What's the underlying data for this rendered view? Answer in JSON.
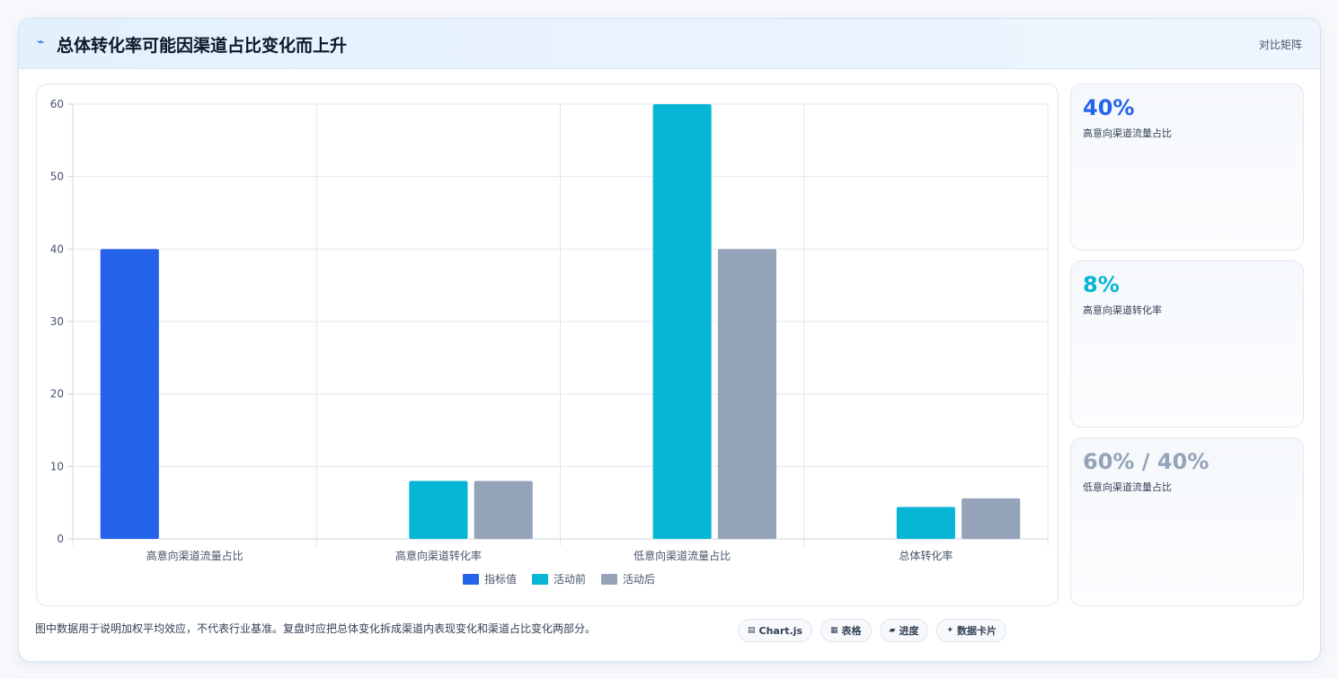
{
  "header": {
    "icon": "chart-line-icon",
    "icon_glyph": "⌁",
    "title": "总体转化率可能因渠道占比变化而上升",
    "tag": "对比矩阵"
  },
  "chart_data": {
    "type": "bar",
    "categories": [
      "高意向渠道流量占比",
      "高意向渠道转化率",
      "低意向渠道流量占比",
      "总体转化率"
    ],
    "series": [
      {
        "name": "指标值",
        "color": "#2563eb",
        "values": [
          40,
          null,
          null,
          null
        ]
      },
      {
        "name": "活动前",
        "color": "#06b6d4",
        "values": [
          null,
          8,
          60,
          4.4
        ]
      },
      {
        "name": "活动后",
        "color": "#94a3b8",
        "values": [
          null,
          8,
          40,
          5.6
        ]
      }
    ],
    "ylim": [
      0,
      60
    ],
    "yticks": [
      0,
      10,
      20,
      30,
      40,
      50,
      60
    ],
    "grid": true,
    "legend_position": "bottom"
  },
  "stats": [
    {
      "value": "40%",
      "label": "高意向渠道流量占比",
      "color": "#2563eb"
    },
    {
      "value": "8%",
      "label": "高意向渠道转化率",
      "color": "#06b6d4"
    },
    {
      "value": "60% / 40%",
      "label": "低意向渠道流量占比",
      "color": "#94a3b8"
    }
  ],
  "footer": {
    "note": "图中数据用于说明加权平均效应，不代表行业基准。复盘时应把总体变化拆成渠道内表现变化和渠道占比变化两部分。",
    "chips": [
      {
        "icon": "chart-icon",
        "glyph": "▤",
        "label": "Chart.js"
      },
      {
        "icon": "table-icon",
        "glyph": "▦",
        "label": "表格"
      },
      {
        "icon": "progress-icon",
        "glyph": "▰",
        "label": "进度"
      },
      {
        "icon": "data-card-icon",
        "glyph": "✦",
        "label": "数据卡片"
      }
    ]
  }
}
